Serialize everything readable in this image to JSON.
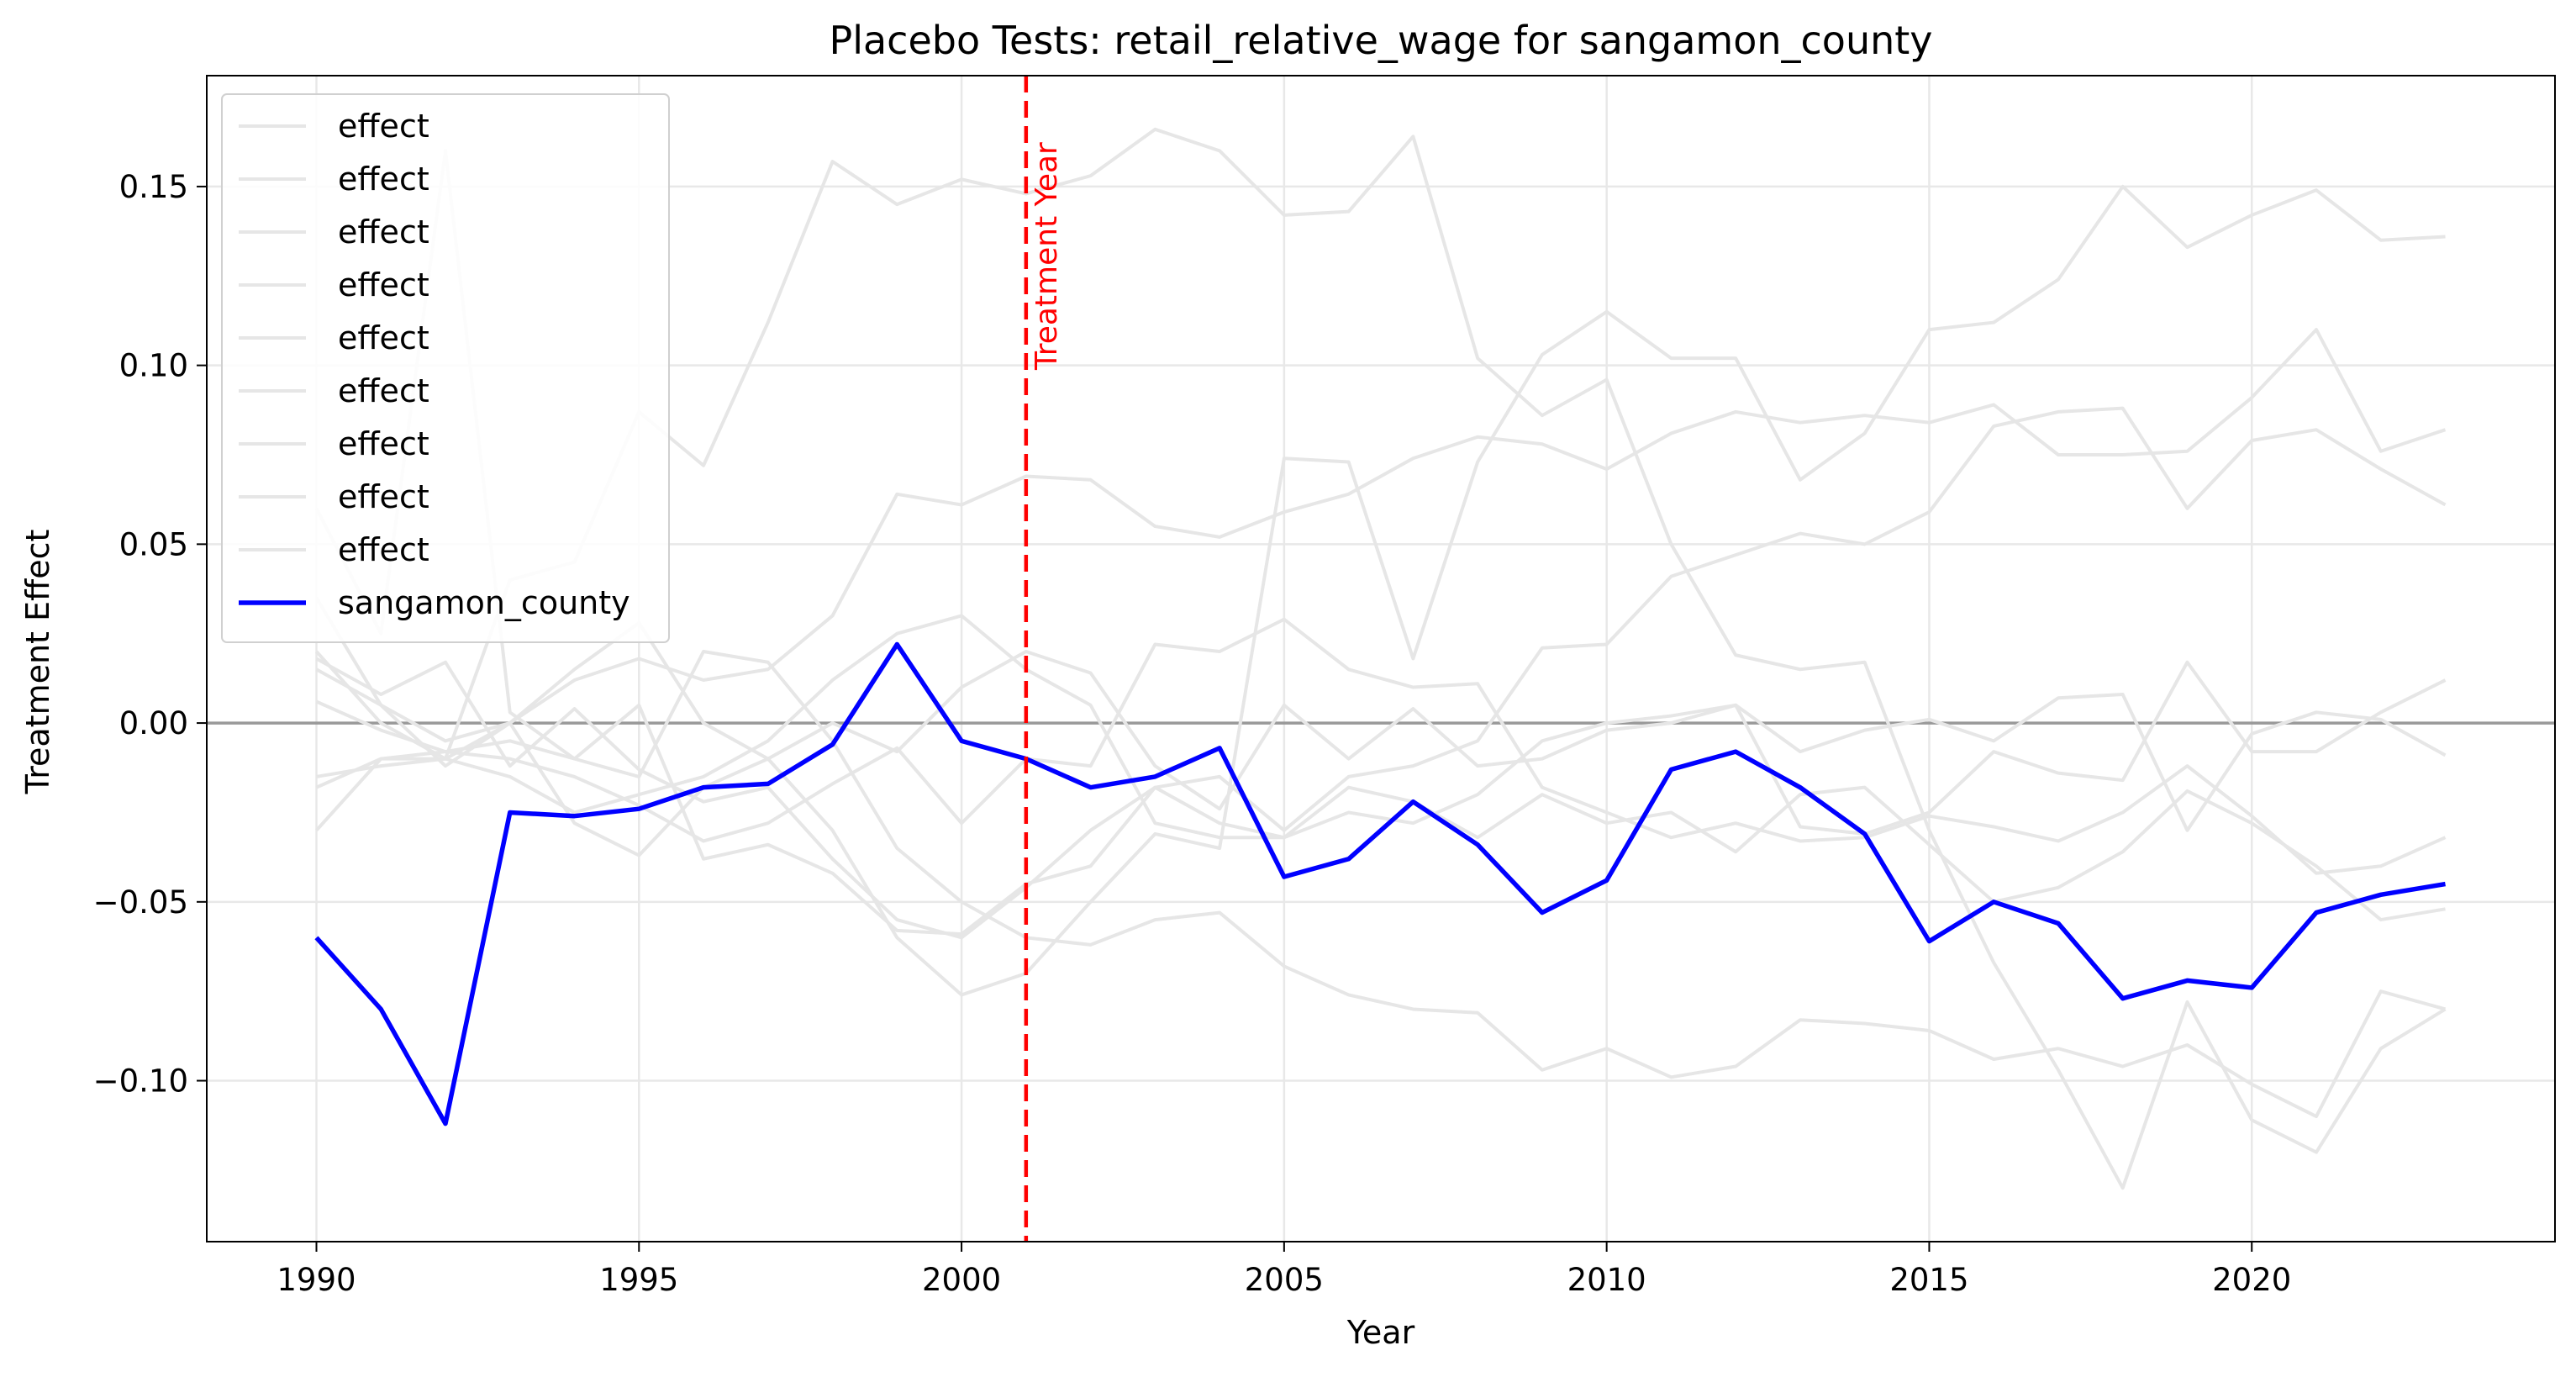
{
  "chart_data": {
    "type": "line",
    "title": "Placebo Tests: retail_relative_wage for sangamon_county",
    "xlabel": "Year",
    "ylabel": "Treatment Effect",
    "xlim": [
      1988.3,
      2024.7
    ],
    "ylim": [
      -0.145,
      0.181
    ],
    "x_ticks": [
      1990,
      1995,
      2000,
      2005,
      2010,
      2015,
      2020
    ],
    "x_tick_labels": [
      "1990",
      "1995",
      "2000",
      "2005",
      "2010",
      "2015",
      "2020"
    ],
    "y_ticks": [
      -0.1,
      -0.05,
      0.0,
      0.05,
      0.1,
      0.15
    ],
    "y_tick_labels": [
      "−0.10",
      "−0.05",
      "0.00",
      "0.05",
      "0.10",
      "0.15"
    ],
    "grid": true,
    "legend_position": "top-left",
    "zero_line": 0.0,
    "treatment_year": 2001,
    "treatment_label": "Treatment Year",
    "colors": {
      "highlight": "#0000ff",
      "placebo": "#e6e6e6",
      "treatment_line": "#ff0000",
      "zero_line": "#999999",
      "grid": "#e8e8e8"
    },
    "x": [
      1990,
      1991,
      1992,
      1993,
      1994,
      1995,
      1996,
      1997,
      1998,
      1999,
      2000,
      2001,
      2002,
      2003,
      2004,
      2005,
      2006,
      2007,
      2008,
      2009,
      2010,
      2011,
      2012,
      2013,
      2014,
      2015,
      2016,
      2017,
      2018,
      2019,
      2020,
      2021,
      2022,
      2023
    ],
    "series": [
      {
        "name": "effect",
        "role": "placebo",
        "values": [
          0.06,
          0.025,
          0.16,
          0.003,
          -0.01,
          -0.015,
          0.02,
          0.017,
          -0.005,
          -0.035,
          -0.05,
          -0.06,
          -0.062,
          -0.055,
          -0.053,
          -0.068,
          -0.076,
          -0.08,
          -0.081,
          -0.097,
          -0.091,
          -0.099,
          -0.096,
          -0.083,
          -0.084,
          -0.086,
          -0.094,
          -0.091,
          -0.096,
          -0.09,
          -0.101,
          -0.11,
          -0.075,
          -0.08
        ]
      },
      {
        "name": "effect",
        "role": "placebo",
        "values": [
          0.02,
          0.0,
          -0.01,
          0.04,
          0.045,
          0.087,
          0.072,
          0.112,
          0.157,
          0.145,
          0.152,
          0.148,
          0.153,
          0.166,
          0.16,
          0.142,
          0.143,
          0.164,
          0.102,
          0.086,
          0.096,
          0.05,
          0.019,
          0.015,
          0.017,
          -0.03,
          -0.067,
          -0.097,
          -0.13,
          -0.078,
          -0.111,
          -0.12,
          -0.091,
          -0.08
        ]
      },
      {
        "name": "effect",
        "role": "placebo",
        "values": [
          0.035,
          0.005,
          -0.012,
          0.0,
          0.012,
          0.018,
          0.012,
          0.015,
          0.03,
          0.064,
          0.061,
          0.069,
          0.068,
          0.055,
          0.052,
          0.059,
          0.064,
          0.074,
          0.08,
          0.078,
          0.071,
          0.081,
          0.087,
          0.084,
          0.086,
          0.084,
          0.089,
          0.075,
          0.075,
          0.076,
          0.091,
          0.11,
          0.076,
          0.082
        ]
      },
      {
        "name": "effect",
        "role": "placebo",
        "values": [
          0.015,
          0.005,
          -0.005,
          0.0,
          0.015,
          0.028,
          0.0,
          -0.01,
          -0.03,
          -0.06,
          -0.076,
          -0.07,
          -0.05,
          -0.031,
          -0.035,
          0.074,
          0.073,
          0.018,
          0.073,
          0.103,
          0.115,
          0.102,
          0.102,
          0.068,
          0.081,
          0.11,
          0.112,
          0.124,
          0.15,
          0.133,
          0.142,
          0.149,
          0.135,
          0.136
        ]
      },
      {
        "name": "effect",
        "role": "placebo",
        "values": [
          -0.03,
          -0.01,
          -0.008,
          -0.005,
          -0.01,
          0.005,
          -0.038,
          -0.034,
          -0.042,
          -0.058,
          -0.059,
          -0.045,
          -0.04,
          -0.018,
          -0.015,
          -0.03,
          -0.015,
          -0.012,
          -0.005,
          0.021,
          0.022,
          0.041,
          0.047,
          0.053,
          0.05,
          0.059,
          0.083,
          0.087,
          0.088,
          0.06,
          0.079,
          0.082,
          0.071,
          0.061
        ]
      },
      {
        "name": "effect",
        "role": "placebo",
        "values": [
          0.006,
          -0.002,
          -0.008,
          -0.01,
          -0.015,
          -0.023,
          -0.033,
          -0.028,
          -0.017,
          -0.007,
          -0.028,
          -0.01,
          -0.012,
          0.022,
          0.02,
          0.029,
          0.015,
          0.01,
          0.011,
          -0.018,
          -0.025,
          -0.032,
          -0.028,
          -0.033,
          -0.032,
          -0.026,
          -0.029,
          -0.033,
          -0.025,
          -0.012,
          -0.026,
          -0.042,
          -0.04,
          -0.032
        ]
      },
      {
        "name": "effect",
        "role": "placebo",
        "values": [
          -0.015,
          -0.012,
          -0.01,
          0.0,
          -0.028,
          -0.037,
          -0.018,
          -0.01,
          0.0,
          -0.008,
          0.01,
          0.02,
          0.014,
          -0.012,
          -0.024,
          0.005,
          -0.01,
          0.004,
          -0.012,
          -0.01,
          -0.002,
          0.0,
          0.005,
          -0.029,
          -0.031,
          -0.025,
          -0.008,
          -0.014,
          -0.016,
          0.017,
          -0.008,
          -0.008,
          0.003,
          0.012
        ]
      },
      {
        "name": "effect",
        "role": "placebo",
        "values": [
          0.018,
          0.008,
          0.017,
          -0.012,
          0.004,
          -0.013,
          -0.022,
          -0.018,
          -0.038,
          -0.055,
          -0.06,
          -0.046,
          -0.03,
          -0.018,
          -0.028,
          -0.032,
          -0.018,
          -0.022,
          -0.032,
          -0.02,
          -0.028,
          -0.025,
          -0.036,
          -0.02,
          -0.018,
          -0.034,
          -0.05,
          -0.046,
          -0.036,
          -0.019,
          -0.028,
          -0.04,
          -0.055,
          -0.052
        ]
      },
      {
        "name": "effect",
        "role": "placebo",
        "values": [
          -0.018,
          -0.01,
          -0.01,
          -0.015,
          -0.025,
          -0.02,
          -0.015,
          -0.005,
          0.012,
          0.025,
          0.03,
          0.015,
          0.005,
          -0.028,
          -0.032,
          -0.032,
          -0.025,
          -0.028,
          -0.02,
          -0.005,
          0.0,
          0.002,
          0.005,
          -0.008,
          -0.002,
          0.001,
          -0.005,
          0.007,
          0.008,
          -0.03,
          -0.003,
          0.003,
          0.001,
          -0.009
        ]
      },
      {
        "name": "sangamon_county",
        "role": "highlight",
        "values": [
          -0.06,
          -0.08,
          -0.112,
          -0.025,
          -0.026,
          -0.024,
          -0.018,
          -0.017,
          -0.006,
          0.022,
          -0.005,
          -0.01,
          -0.018,
          -0.015,
          -0.007,
          -0.043,
          -0.038,
          -0.022,
          -0.034,
          -0.053,
          -0.044,
          -0.013,
          -0.008,
          -0.018,
          -0.031,
          -0.061,
          -0.05,
          -0.056,
          -0.077,
          -0.072,
          -0.074,
          -0.053,
          -0.048,
          -0.045
        ]
      }
    ]
  }
}
